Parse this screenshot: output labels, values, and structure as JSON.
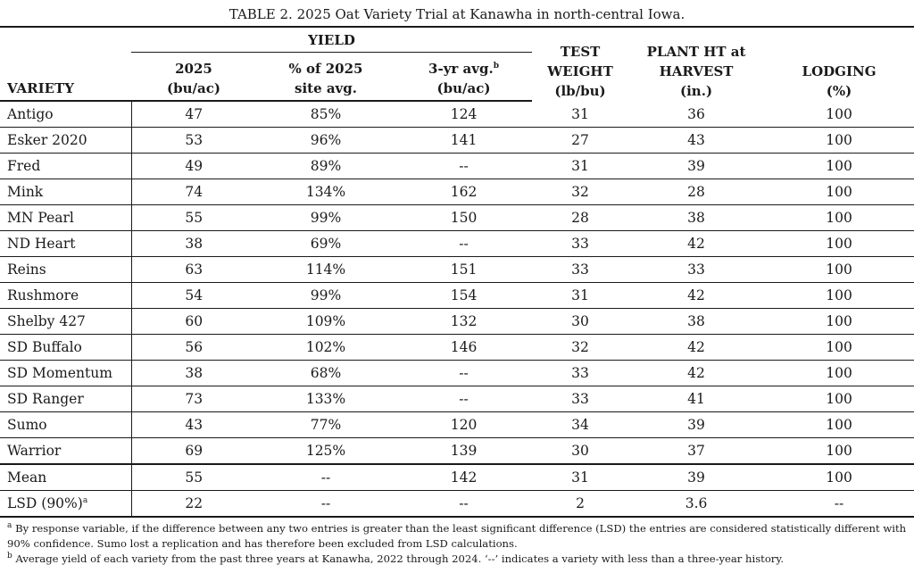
{
  "title": "TABLE 2. 2025 Oat Variety Trial at Kanawha in north-central Iowa.",
  "headers": {
    "yield_group": "YIELD",
    "variety": "VARIETY",
    "y2025_line1": "2025",
    "y2025_line2": "(bu/ac)",
    "pct_line1": "% of 2025",
    "pct_line2": "site avg.",
    "avg3_line1": "3-yr avg.",
    "avg3_sup": "b",
    "avg3_line2": "(bu/ac)",
    "tw_line1": "TEST",
    "tw_line2": "WEIGHT",
    "tw_line3": "(lb/bu)",
    "ph_line1": "PLANT HT at",
    "ph_line2": "HARVEST",
    "ph_line3": "(in.)",
    "lod_line1": "LODGING",
    "lod_line2": "(%)"
  },
  "rows": [
    {
      "variety": "Antigo",
      "y2025": "47",
      "pct": "85%",
      "avg3": "124",
      "tw": "31",
      "ph": "36",
      "lodging": "100"
    },
    {
      "variety": "Esker 2020",
      "y2025": "53",
      "pct": "96%",
      "avg3": "141",
      "tw": "27",
      "ph": "43",
      "lodging": "100"
    },
    {
      "variety": "Fred",
      "y2025": "49",
      "pct": "89%",
      "avg3": "--",
      "tw": "31",
      "ph": "39",
      "lodging": "100"
    },
    {
      "variety": "Mink",
      "y2025": "74",
      "pct": "134%",
      "avg3": "162",
      "tw": "32",
      "ph": "28",
      "lodging": "100"
    },
    {
      "variety": "MN Pearl",
      "y2025": "55",
      "pct": "99%",
      "avg3": "150",
      "tw": "28",
      "ph": "38",
      "lodging": "100"
    },
    {
      "variety": "ND Heart",
      "y2025": "38",
      "pct": "69%",
      "avg3": "--",
      "tw": "33",
      "ph": "42",
      "lodging": "100"
    },
    {
      "variety": "Reins",
      "y2025": "63",
      "pct": "114%",
      "avg3": "151",
      "tw": "33",
      "ph": "33",
      "lodging": "100"
    },
    {
      "variety": "Rushmore",
      "y2025": "54",
      "pct": "99%",
      "avg3": "154",
      "tw": "31",
      "ph": "42",
      "lodging": "100"
    },
    {
      "variety": "Shelby 427",
      "y2025": "60",
      "pct": "109%",
      "avg3": "132",
      "tw": "30",
      "ph": "38",
      "lodging": "100"
    },
    {
      "variety": "SD Buffalo",
      "y2025": "56",
      "pct": "102%",
      "avg3": "146",
      "tw": "32",
      "ph": "42",
      "lodging": "100"
    },
    {
      "variety": "SD Momentum",
      "y2025": "38",
      "pct": "68%",
      "avg3": "--",
      "tw": "33",
      "ph": "42",
      "lodging": "100"
    },
    {
      "variety": "SD Ranger",
      "y2025": "73",
      "pct": "133%",
      "avg3": "--",
      "tw": "33",
      "ph": "41",
      "lodging": "100"
    },
    {
      "variety": "Sumo",
      "y2025": "43",
      "pct": "77%",
      "avg3": "120",
      "tw": "34",
      "ph": "39",
      "lodging": "100"
    },
    {
      "variety": "Warrior",
      "y2025": "69",
      "pct": "125%",
      "avg3": "139",
      "tw": "30",
      "ph": "37",
      "lodging": "100"
    }
  ],
  "mean": {
    "variety": "Mean",
    "y2025": "55",
    "pct": "--",
    "avg3": "142",
    "tw": "31",
    "ph": "39",
    "lodging": "100"
  },
  "lsd": {
    "variety": "LSD (90%)",
    "sup": "a",
    "y2025": "22",
    "pct": "--",
    "avg3": "--",
    "tw": "2",
    "ph": "3.6",
    "lodging": "--"
  },
  "footnotes": {
    "a_mark": "a",
    "a_text": "By response variable, if the difference between any two entries is greater than the least significant difference (LSD) the entries are considered statistically different with 90% confidence. Sumo lost a replication and has therefore been excluded from LSD calculations.",
    "b_mark": "b",
    "b_text": "Average yield of each variety from the past three years at Kanawha, 2022 through 2024. ‘--’ indicates a variety with less than a three-year history."
  }
}
